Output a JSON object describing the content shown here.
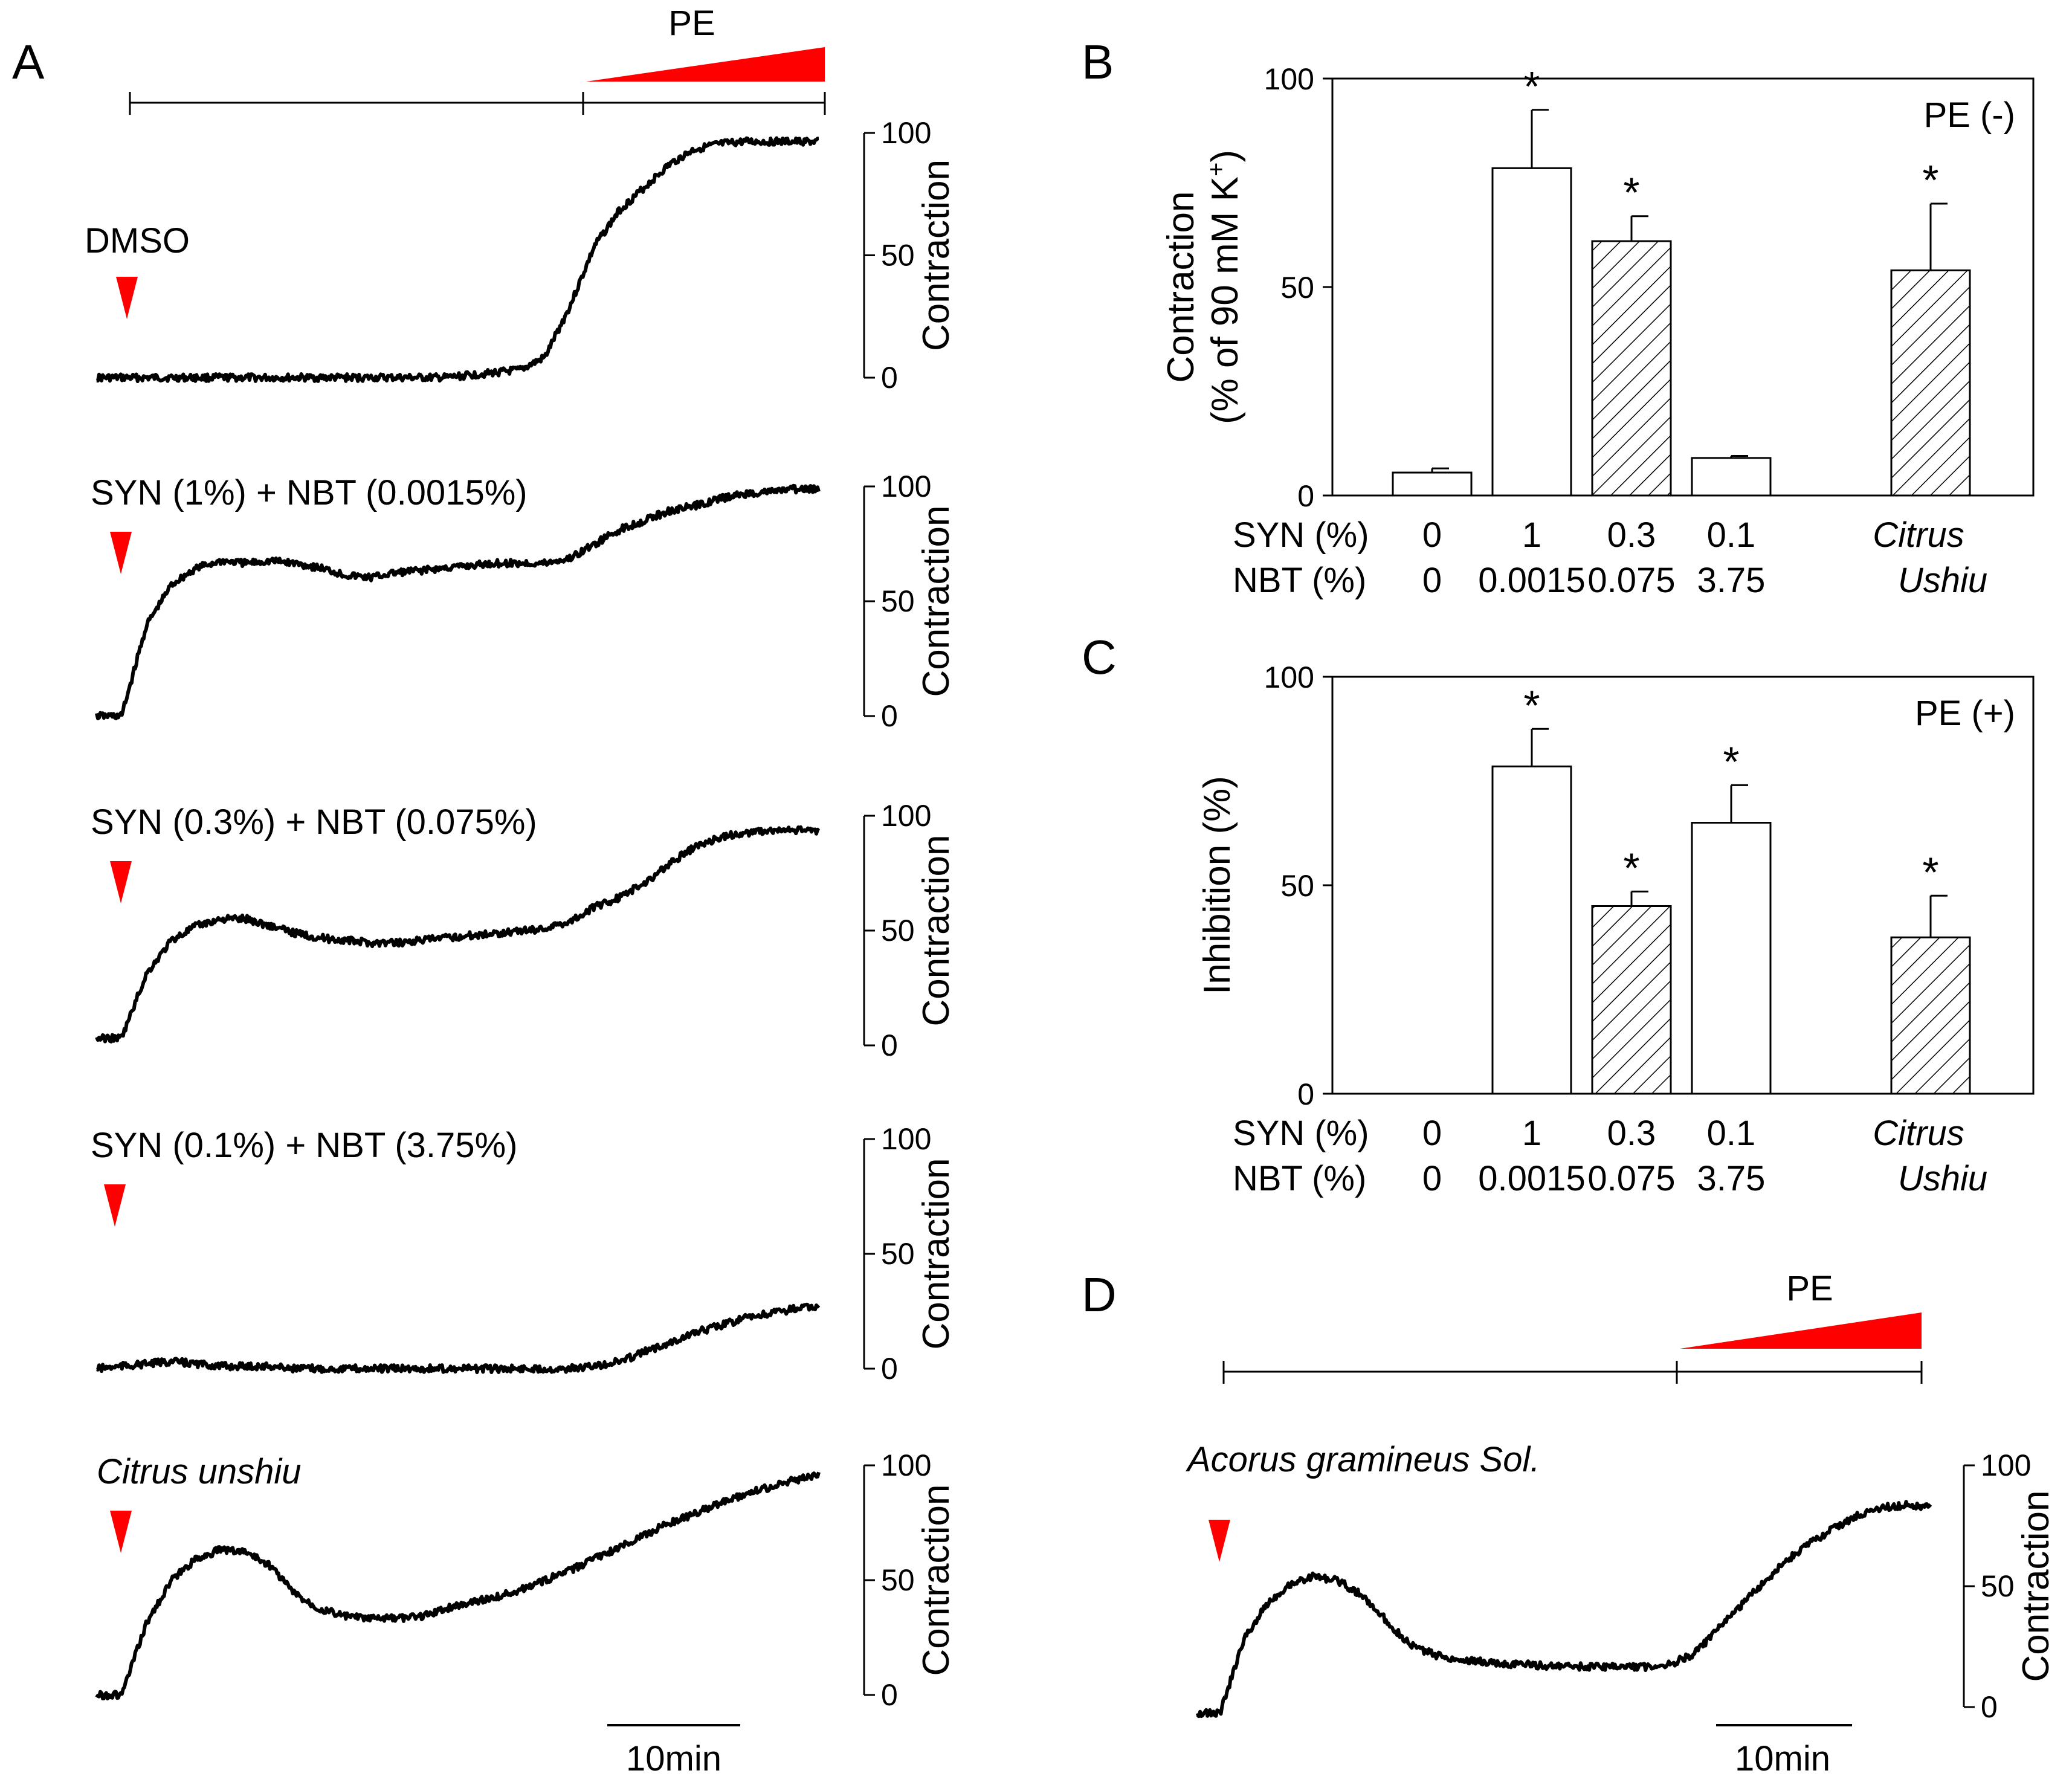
{
  "colors": {
    "marker": "#ff0000",
    "trace": "#000000",
    "hatch": "#000000"
  },
  "panel_letters": {
    "a": "A",
    "b": "B",
    "c": "C",
    "d": "D"
  },
  "chart_data": [
    {
      "panel": "A",
      "type": "line",
      "protocol_label": "PE",
      "ylabel": "Contraction",
      "ticks": [
        "0",
        "50",
        "100"
      ],
      "ylim": [
        0,
        100
      ],
      "scale_bar": "10min",
      "traces": [
        {
          "name": "DMSO",
          "italic": false,
          "values": [
            0,
            0,
            0,
            0,
            0,
            0,
            0,
            0,
            0,
            0,
            0,
            0,
            0,
            0,
            0,
            1,
            2,
            3,
            8,
            28,
            52,
            66,
            75,
            84,
            90,
            92,
            93,
            93,
            93,
            93
          ]
        },
        {
          "name": "SYN (1%) + NBT (0.0015%)",
          "italic": false,
          "values": [
            0,
            0,
            38,
            55,
            62,
            65,
            64,
            65,
            64,
            62,
            59,
            58,
            60,
            61,
            62,
            63,
            64,
            64,
            64,
            66,
            72,
            78,
            82,
            86,
            88,
            91,
            93,
            94,
            95,
            95
          ]
        },
        {
          "name": "SYN (0.3%) + NBT (0.075%)",
          "italic": false,
          "values": [
            3,
            3,
            30,
            44,
            50,
            53,
            53,
            50,
            47,
            45,
            44,
            43,
            43,
            44,
            45,
            46,
            47,
            48,
            49,
            52,
            58,
            62,
            68,
            76,
            83,
            87,
            89,
            90,
            90,
            90
          ]
        },
        {
          "name": "SYN (0.1%) + NBT (3.75%)",
          "italic": false,
          "values": [
            0,
            1,
            2,
            3,
            2,
            1,
            1,
            1,
            0,
            0,
            0,
            0,
            0,
            0,
            0,
            0,
            0,
            0,
            0,
            0,
            1,
            3,
            7,
            11,
            15,
            18,
            21,
            23,
            25,
            26
          ]
        },
        {
          "name": "Citrus unshiu",
          "italic": true,
          "values": [
            0,
            0,
            30,
            48,
            57,
            61,
            60,
            54,
            42,
            36,
            33,
            32,
            32,
            33,
            36,
            39,
            41,
            44,
            48,
            52,
            57,
            62,
            67,
            72,
            76,
            80,
            84,
            87,
            90,
            92
          ]
        }
      ]
    },
    {
      "panel": "B",
      "type": "bar",
      "corner_label": "PE (-)",
      "ylabel_line1": "Contraction",
      "ylabel_line2": "(% of 90 mM K",
      "ylabel_sup": "+",
      "ylabel_end": ")",
      "ylim": [
        0,
        100
      ],
      "yticks": [
        "0",
        "50",
        "100"
      ],
      "row1_label": "SYN (%)",
      "row2_label": "NBT (%)",
      "bars": [
        {
          "syn": "0",
          "nbt": "0",
          "value": 5.5,
          "error": 1,
          "hatched": false,
          "sig": ""
        },
        {
          "syn": "1",
          "nbt": "0.0015",
          "value": 78.5,
          "error": 14,
          "hatched": false,
          "sig": "*"
        },
        {
          "syn": "0.3",
          "nbt": "0.075",
          "value": 61,
          "error": 6,
          "hatched": true,
          "sig": "*"
        },
        {
          "syn": "0.1",
          "nbt": "3.75",
          "value": 9,
          "error": 0.5,
          "hatched": false,
          "sig": ""
        },
        {
          "syn": "Citrus",
          "nbt": "Ushiu",
          "value": 54,
          "error": 16,
          "hatched": true,
          "sig": "*"
        }
      ]
    },
    {
      "panel": "C",
      "type": "bar",
      "corner_label": "PE (+)",
      "ylabel": "Inhibition (%)",
      "ylim": [
        0,
        100
      ],
      "yticks": [
        "0",
        "50",
        "100"
      ],
      "row1_label": "SYN (%)",
      "row2_label": "NBT (%)",
      "bars": [
        {
          "syn": "0",
          "nbt": "0",
          "value": 0,
          "error": 0,
          "hatched": false,
          "sig": ""
        },
        {
          "syn": "1",
          "nbt": "0.0015",
          "value": 78.5,
          "error": 9,
          "hatched": false,
          "sig": "*"
        },
        {
          "syn": "0.3",
          "nbt": "0.075",
          "value": 45,
          "error": 3.5,
          "hatched": true,
          "sig": "*"
        },
        {
          "syn": "0.1",
          "nbt": "3.75",
          "value": 65,
          "error": 9,
          "hatched": false,
          "sig": "*"
        },
        {
          "syn": "Citrus",
          "nbt": "Ushiu",
          "value": 37.5,
          "error": 10,
          "hatched": true,
          "sig": "*"
        }
      ]
    },
    {
      "panel": "D",
      "type": "line",
      "protocol_label": "PE",
      "ylabel": "Contraction",
      "ticks": [
        "0",
        "50",
        "100"
      ],
      "ylim": [
        0,
        100
      ],
      "scale_bar": "10min",
      "traces": [
        {
          "name": "Acorus gramineus Sol.",
          "italic": true,
          "values": [
            0,
            0,
            30,
            45,
            53,
            56,
            54,
            48,
            38,
            28,
            24,
            22,
            21,
            20,
            20,
            19,
            19,
            19,
            19,
            19,
            20,
            24,
            34,
            44,
            54,
            63,
            70,
            76,
            81,
            84,
            85,
            84
          ]
        }
      ]
    }
  ]
}
